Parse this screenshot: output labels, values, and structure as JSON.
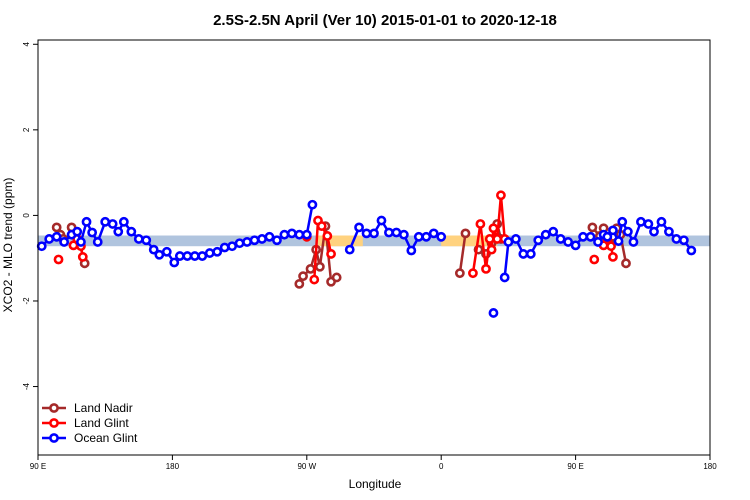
{
  "chart_data": {
    "type": "line",
    "title": "2.5S-2.5N April (Ver 10)   2015-01-01 to 2020-12-18",
    "xlabel": "Longitude",
    "ylabel": "XCO2 - MLO trend (ppm)",
    "xlim": [
      90,
      450
    ],
    "ylim": [
      -5.6,
      4.1
    ],
    "x_ticks": [
      {
        "value": 90,
        "label": "90 E"
      },
      {
        "value": 162,
        "label": "180"
      },
      {
        "value": 234,
        "label": "90 W"
      },
      {
        "value": 306,
        "label": "0"
      },
      {
        "value": 378,
        "label": "90 E"
      },
      {
        "value": 450,
        "label": "180"
      }
    ],
    "y_ticks": [
      -4,
      -2,
      0,
      2,
      4
    ],
    "grid": false,
    "legend_position": "bottom-left",
    "bands": [
      {
        "name": "ocean-band",
        "x": [
          90,
          450
        ],
        "y": [
          -0.72,
          -0.47
        ],
        "color": "#b0c4de"
      },
      {
        "name": "land-band-1",
        "x": [
          240,
          264
        ],
        "y": [
          -0.72,
          -0.47
        ],
        "color": "#ffd27f"
      },
      {
        "name": "land-band-2",
        "x": [
          306,
          336
        ],
        "y": [
          -0.72,
          -0.47
        ],
        "color": "#ffd27f"
      }
    ],
    "series": [
      {
        "name": "Land Nadir",
        "color": "#a52a2a",
        "segments": [
          [
            [
              100,
              -0.28
            ],
            [
              102,
              -0.45
            ],
            [
              103.5,
              -0.55
            ]
          ],
          [
            [
              108,
              -0.28
            ],
            [
              110,
              -0.45
            ],
            [
              112,
              -0.6
            ],
            [
              115,
              -1.12
            ]
          ],
          [
            [
              230,
              -1.6
            ],
            [
              232,
              -1.42
            ],
            [
              236,
              -1.25
            ],
            [
              239,
              -0.8
            ],
            [
              241,
              -1.2
            ],
            [
              244,
              -0.25
            ],
            [
              247,
              -1.55
            ],
            [
              250,
              -1.45
            ]
          ],
          [
            [
              316,
              -1.35
            ],
            [
              319,
              -0.42
            ]
          ],
          [
            [
              326,
              -0.8
            ],
            [
              330,
              -0.9
            ],
            [
              333,
              -0.65
            ],
            [
              336,
              -0.2
            ],
            [
              338,
              -0.55
            ]
          ],
          [
            [
              387,
              -0.28
            ],
            [
              391,
              -0.48
            ],
            [
              393,
              -0.3
            ],
            [
              396,
              -0.62
            ],
            [
              398,
              -0.5
            ]
          ],
          [
            [
              400,
              -0.3
            ],
            [
              402,
              -0.45
            ],
            [
              405,
              -1.12
            ]
          ]
        ]
      },
      {
        "name": "Land Glint",
        "color": "#ff0000",
        "segments": [
          [
            [
              101,
              -1.03
            ]
          ],
          [
            [
              109,
              -0.7
            ],
            [
              111,
              -0.55
            ],
            [
              113,
              -0.72
            ],
            [
              114,
              -0.97
            ]
          ],
          [
            [
              234,
              -0.5
            ]
          ],
          [
            [
              238,
              -1.5
            ],
            [
              240,
              -0.12
            ],
            [
              242,
              -0.25
            ],
            [
              245,
              -0.48
            ],
            [
              247,
              -0.9
            ]
          ],
          [
            [
              323,
              -1.35
            ],
            [
              327,
              -0.2
            ],
            [
              330,
              -1.25
            ],
            [
              332,
              -0.55
            ],
            [
              333,
              -0.8
            ],
            [
              334,
              -0.3
            ],
            [
              336,
              -0.55
            ],
            [
              338,
              0.47
            ],
            [
              340,
              -0.55
            ]
          ],
          [
            [
              388,
              -1.03
            ]
          ],
          [
            [
              393,
              -0.7
            ],
            [
              395,
              -0.55
            ],
            [
              397,
              -0.72
            ],
            [
              398,
              -0.97
            ]
          ]
        ]
      },
      {
        "name": "Ocean Glint",
        "color": "#0000ff",
        "segments": [
          [
            [
              92,
              -0.72
            ],
            [
              96,
              -0.55
            ],
            [
              100,
              -0.5
            ],
            [
              104,
              -0.62
            ],
            [
              108,
              -0.45
            ],
            [
              111,
              -0.38
            ],
            [
              113,
              -0.62
            ],
            [
              116,
              -0.15
            ],
            [
              119,
              -0.4
            ],
            [
              122,
              -0.62
            ],
            [
              126,
              -0.15
            ],
            [
              130,
              -0.2
            ],
            [
              133,
              -0.38
            ],
            [
              136,
              -0.15
            ],
            [
              140,
              -0.38
            ],
            [
              144,
              -0.55
            ],
            [
              148,
              -0.58
            ],
            [
              152,
              -0.8
            ],
            [
              155,
              -0.92
            ],
            [
              159,
              -0.85
            ],
            [
              163,
              -1.1
            ],
            [
              166,
              -0.95
            ],
            [
              170,
              -0.95
            ],
            [
              174,
              -0.95
            ],
            [
              178,
              -0.95
            ],
            [
              182,
              -0.88
            ],
            [
              186,
              -0.85
            ],
            [
              190,
              -0.75
            ],
            [
              194,
              -0.72
            ],
            [
              198,
              -0.65
            ],
            [
              202,
              -0.62
            ],
            [
              206,
              -0.58
            ],
            [
              210,
              -0.55
            ],
            [
              214,
              -0.5
            ],
            [
              218,
              -0.58
            ],
            [
              222,
              -0.45
            ],
            [
              226,
              -0.42
            ],
            [
              230,
              -0.45
            ],
            [
              234,
              -0.45
            ],
            [
              237,
              0.25
            ]
          ],
          [
            [
              257,
              -0.8
            ],
            [
              262,
              -0.28
            ],
            [
              266,
              -0.42
            ],
            [
              270,
              -0.42
            ],
            [
              274,
              -0.12
            ],
            [
              278,
              -0.4
            ],
            [
              282,
              -0.4
            ],
            [
              286,
              -0.45
            ],
            [
              290,
              -0.82
            ],
            [
              294,
              -0.5
            ],
            [
              298,
              -0.5
            ],
            [
              302,
              -0.42
            ],
            [
              306,
              -0.5
            ]
          ],
          [
            [
              334,
              -2.28
            ]
          ],
          [
            [
              340,
              -1.45
            ],
            [
              342,
              -0.62
            ],
            [
              346,
              -0.55
            ],
            [
              350,
              -0.9
            ],
            [
              354,
              -0.9
            ],
            [
              358,
              -0.58
            ],
            [
              362,
              -0.45
            ],
            [
              366,
              -0.38
            ],
            [
              370,
              -0.55
            ],
            [
              374,
              -0.62
            ],
            [
              378,
              -0.7
            ],
            [
              382,
              -0.5
            ],
            [
              386,
              -0.5
            ],
            [
              390,
              -0.62
            ],
            [
              393,
              -0.45
            ],
            [
              395,
              -0.5
            ],
            [
              398,
              -0.35
            ],
            [
              401,
              -0.6
            ],
            [
              403,
              -0.15
            ],
            [
              406,
              -0.38
            ],
            [
              409,
              -0.62
            ],
            [
              413,
              -0.15
            ],
            [
              417,
              -0.2
            ],
            [
              420,
              -0.38
            ],
            [
              424,
              -0.15
            ],
            [
              428,
              -0.38
            ],
            [
              432,
              -0.55
            ],
            [
              436,
              -0.58
            ],
            [
              440,
              -0.82
            ]
          ]
        ]
      }
    ]
  }
}
